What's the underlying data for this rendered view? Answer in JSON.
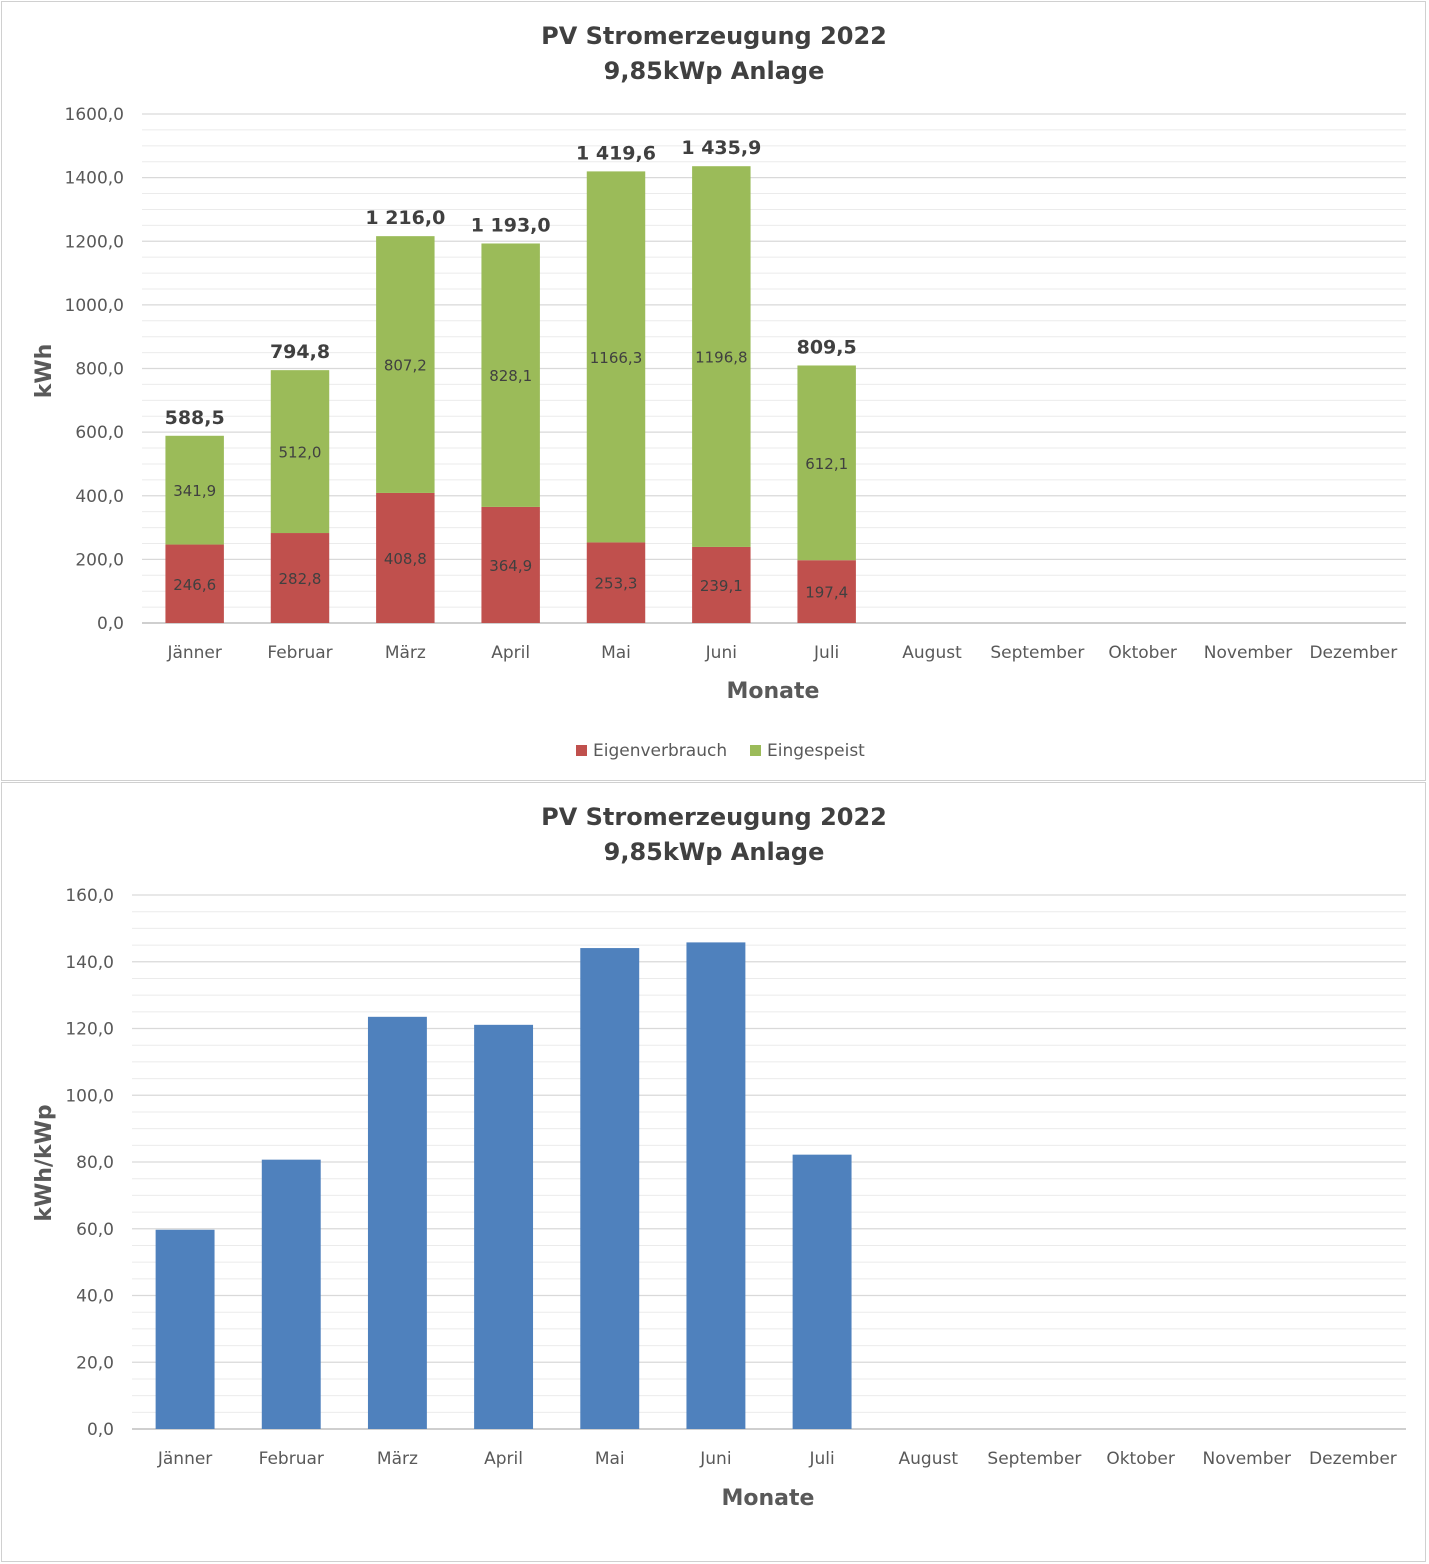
{
  "chart_data": [
    {
      "type": "bar",
      "stacked": true,
      "title": "PV Stromerzeugung 2022",
      "subtitle": "9,85kWp Anlage",
      "xlabel": "Monate",
      "ylabel": "kWh",
      "ylim": [
        0,
        1600
      ],
      "yticks": [
        "0,0",
        "200,0",
        "400,0",
        "600,0",
        "800,0",
        "1000,0",
        "1200,0",
        "1400,0",
        "1600,0"
      ],
      "grid": true,
      "legend": "bottom",
      "categories": [
        "Jänner",
        "Februar",
        "März",
        "April",
        "Mai",
        "Juni",
        "Juli",
        "August",
        "September",
        "Oktober",
        "November",
        "Dezember"
      ],
      "series": [
        {
          "name": "Eigenverbrauch",
          "color": "#c0504d",
          "values": [
            246.6,
            282.8,
            408.8,
            364.9,
            253.3,
            239.1,
            197.4,
            null,
            null,
            null,
            null,
            null
          ],
          "labels": [
            "246,6",
            "282,8",
            "408,8",
            "364,9",
            "253,3",
            "239,1",
            "197,4",
            "",
            "",
            "",
            "",
            ""
          ]
        },
        {
          "name": "Eingespeist",
          "color": "#9bbb59",
          "values": [
            341.9,
            512.0,
            807.2,
            828.1,
            1166.3,
            1196.8,
            612.1,
            null,
            null,
            null,
            null,
            null
          ],
          "labels": [
            "341,9",
            "512,0",
            "807,2",
            "828,1",
            "1166,3",
            "1196,8",
            "612,1",
            "",
            "",
            "",
            "",
            ""
          ]
        }
      ],
      "totals": [
        588.5,
        794.8,
        1216.0,
        1193.0,
        1419.6,
        1435.9,
        809.5,
        null,
        null,
        null,
        null,
        null
      ],
      "total_labels": [
        "588,5",
        "794,8",
        "1 216,0",
        "1 193,0",
        "1 419,6",
        "1 435,9",
        "809,5",
        "",
        "",
        "",
        "",
        ""
      ]
    },
    {
      "type": "bar",
      "stacked": false,
      "title": "PV Stromerzeugung 2022",
      "subtitle": "9,85kWp Anlage",
      "xlabel": "Monate",
      "ylabel": "kWh/kWp",
      "ylim": [
        0,
        160
      ],
      "yticks": [
        "0,0",
        "20,0",
        "40,0",
        "60,0",
        "80,0",
        "100,0",
        "120,0",
        "140,0",
        "160,0"
      ],
      "grid": true,
      "legend": "none",
      "categories": [
        "Jänner",
        "Februar",
        "März",
        "April",
        "Mai",
        "Juni",
        "Juli",
        "August",
        "September",
        "Oktober",
        "November",
        "Dezember"
      ],
      "series": [
        {
          "color": "#4f81bd",
          "values": [
            59.7,
            80.7,
            123.5,
            121.1,
            144.1,
            145.8,
            82.2,
            null,
            null,
            null,
            null,
            null
          ]
        }
      ]
    }
  ]
}
